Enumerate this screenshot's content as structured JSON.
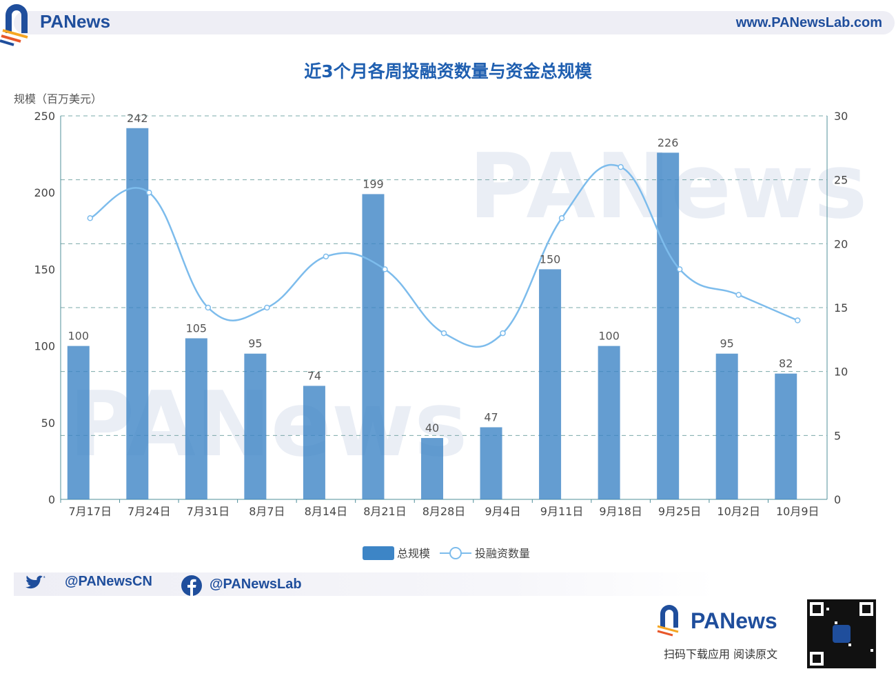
{
  "header": {
    "brand": "PANews",
    "website": "www.PANewsLab.com"
  },
  "footer": {
    "twitter": "@PANewsCN",
    "facebook": "@PANewsLab",
    "brand": "PANews",
    "caption": "扫码下载应用  阅读原文"
  },
  "watermark": "PANews",
  "chart_data": {
    "type": "bar+line",
    "title": "近3个月各周投融资数量与资金总规模",
    "ylabel": "规模（百万美元）",
    "categories": [
      "7月17日",
      "7月24日",
      "7月31日",
      "8月7日",
      "8月14日",
      "8月21日",
      "8月28日",
      "9月4日",
      "9月11日",
      "9月18日",
      "9月25日",
      "10月2日",
      "10月9日"
    ],
    "series": [
      {
        "name": "总规模",
        "type": "bar",
        "axis": "left",
        "color": "#3d85c6",
        "values": [
          100,
          242,
          105,
          95,
          74,
          199,
          40,
          47,
          150,
          100,
          226,
          95,
          82
        ]
      },
      {
        "name": "投融资数量",
        "type": "line",
        "smooth": true,
        "axis": "right",
        "color": "#7dbcec",
        "values": [
          22,
          24,
          15,
          15,
          19,
          18,
          13,
          13,
          22,
          26,
          18,
          16,
          14
        ]
      }
    ],
    "ylim": [
      0,
      250
    ],
    "yticks": [
      0,
      50,
      100,
      150,
      200,
      250
    ],
    "y2lim": [
      0,
      30
    ],
    "y2ticks": [
      0,
      5,
      10,
      15,
      20,
      25,
      30
    ],
    "grid": true,
    "legend": "bottom"
  }
}
